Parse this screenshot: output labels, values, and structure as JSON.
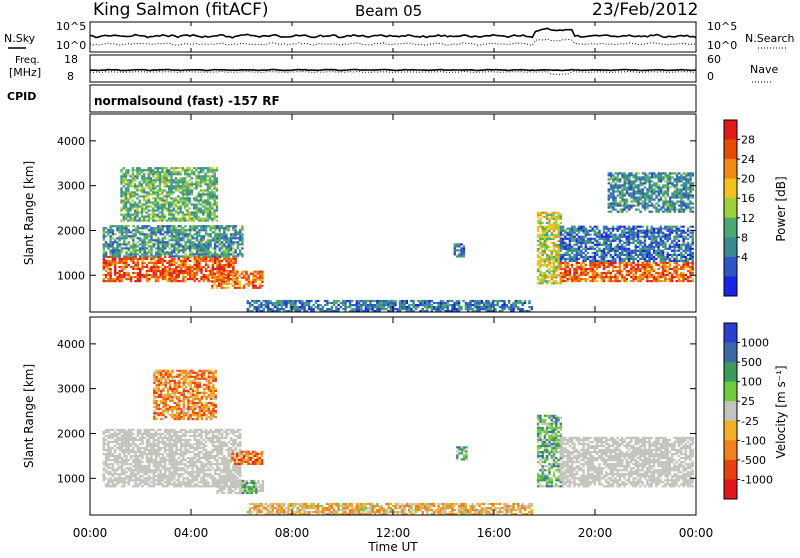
{
  "header": {
    "station": "King Salmon (fitACF)",
    "beam": "Beam 05",
    "date": "23/Feb/2012"
  },
  "summary": {
    "nsky_label": "N.Sky",
    "nsearch_label": "N.Search",
    "noise_ticks": [
      "10^5",
      "10^0"
    ],
    "freq_label_line1": "Freq.",
    "freq_label_line2": "[MHz]",
    "freq_ticks": [
      "18",
      "8"
    ],
    "nave_label": "Nave",
    "nave_ticks": [
      "60",
      "0"
    ],
    "cpid_label": "CPID",
    "cpid_text": "normalsound (fast) -157 RF"
  },
  "colors": {
    "power_scale": [
      "#1a24e6",
      "#2f56c8",
      "#3b8a8f",
      "#4aa870",
      "#9ccf3c",
      "#f3c21b",
      "#f08a10",
      "#e84a0a",
      "#e31a1a"
    ],
    "velocity_scale": [
      "#2a3fd0",
      "#3b6aa8",
      "#3c9a5a",
      "#6fcc3a",
      "#c4c4bc",
      "#f0b020",
      "#f08020",
      "#e84010",
      "#e01818"
    ],
    "ground_scatter": "#c4c4bc"
  },
  "chart_data": [
    {
      "type": "heatmap",
      "name": "power",
      "ylabel": "Slant Range [km]",
      "ylim": [
        180,
        4600
      ],
      "yticks": [
        1000,
        2000,
        3000,
        4000
      ],
      "xlim": [
        0,
        24
      ],
      "colorbar_label": "Power [dB]",
      "colorbar_ticks": [
        "4",
        "8",
        "12",
        "16",
        "20",
        "24",
        "28"
      ],
      "regions": [
        {
          "t0": 0.5,
          "t1": 5.8,
          "r0": 850,
          "r1": 1400,
          "level": 0.82
        },
        {
          "t0": 0.5,
          "t1": 6.0,
          "r0": 1400,
          "r1": 2100,
          "level": 0.32
        },
        {
          "t0": 1.2,
          "t1": 5.0,
          "r0": 2200,
          "r1": 3400,
          "level": 0.4
        },
        {
          "t0": 4.8,
          "t1": 6.8,
          "r0": 700,
          "r1": 1100,
          "level": 0.76
        },
        {
          "t0": 17.7,
          "t1": 18.6,
          "r0": 800,
          "r1": 2400,
          "level": 0.55
        },
        {
          "t0": 18.6,
          "t1": 23.9,
          "r0": 850,
          "r1": 1300,
          "level": 0.8
        },
        {
          "t0": 18.6,
          "t1": 23.9,
          "r0": 1300,
          "r1": 2100,
          "level": 0.22
        },
        {
          "t0": 20.5,
          "t1": 23.9,
          "r0": 2400,
          "r1": 3300,
          "level": 0.3
        },
        {
          "t0": 14.4,
          "t1": 14.8,
          "r0": 1400,
          "r1": 1700,
          "level": 0.2
        },
        {
          "t0": 6.2,
          "t1": 17.5,
          "r0": 180,
          "r1": 420,
          "level": 0.25
        }
      ]
    },
    {
      "type": "heatmap",
      "name": "velocity",
      "ylabel": "Slant Range [km]",
      "ylim": [
        180,
        4600
      ],
      "yticks": [
        1000,
        2000,
        3000,
        4000
      ],
      "xlim": [
        0,
        24
      ],
      "xlabel": "Time UT",
      "xticks": [
        "00:00",
        "04:00",
        "08:00",
        "12:00",
        "16:00",
        "20:00",
        "00:00"
      ],
      "colorbar_label": "Velocity [m s⁻¹]",
      "colorbar_ticks": [
        "1000",
        "500",
        "100",
        "25",
        "-25",
        "-100",
        "-500",
        "-1000"
      ],
      "regions": [
        {
          "t0": 0.5,
          "t1": 5.9,
          "r0": 800,
          "r1": 2100,
          "level": "ground"
        },
        {
          "t0": 5.0,
          "t1": 6.8,
          "r0": 650,
          "r1": 950,
          "level": "ground"
        },
        {
          "t0": 5.6,
          "t1": 6.8,
          "r0": 1300,
          "r1": 1600,
          "level": 0.75
        },
        {
          "t0": 6.0,
          "t1": 6.6,
          "r0": 650,
          "r1": 950,
          "level": 0.35
        },
        {
          "t0": 2.5,
          "t1": 5.0,
          "r0": 2300,
          "r1": 3400,
          "level": 0.7
        },
        {
          "t0": 17.7,
          "t1": 18.6,
          "r0": 800,
          "r1": 2400,
          "level": 0.35
        },
        {
          "t0": 18.6,
          "t1": 23.9,
          "r0": 800,
          "r1": 1900,
          "level": "ground"
        },
        {
          "t0": 14.5,
          "t1": 14.9,
          "r0": 1400,
          "r1": 1700,
          "level": 0.35
        },
        {
          "t0": 6.2,
          "t1": 17.5,
          "r0": 180,
          "r1": 450,
          "level": 0.6
        }
      ]
    }
  ]
}
